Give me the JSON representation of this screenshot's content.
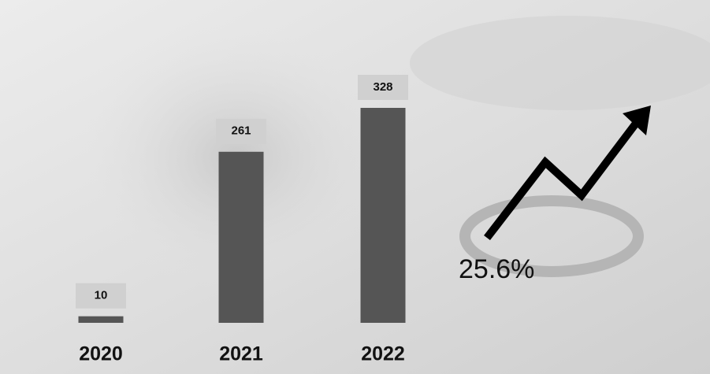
{
  "chart_data": {
    "type": "bar",
    "categories": [
      "2020",
      "2021",
      "2022"
    ],
    "values": [
      10,
      261,
      328
    ],
    "color": "#555555",
    "annotation": "25.6%"
  }
}
